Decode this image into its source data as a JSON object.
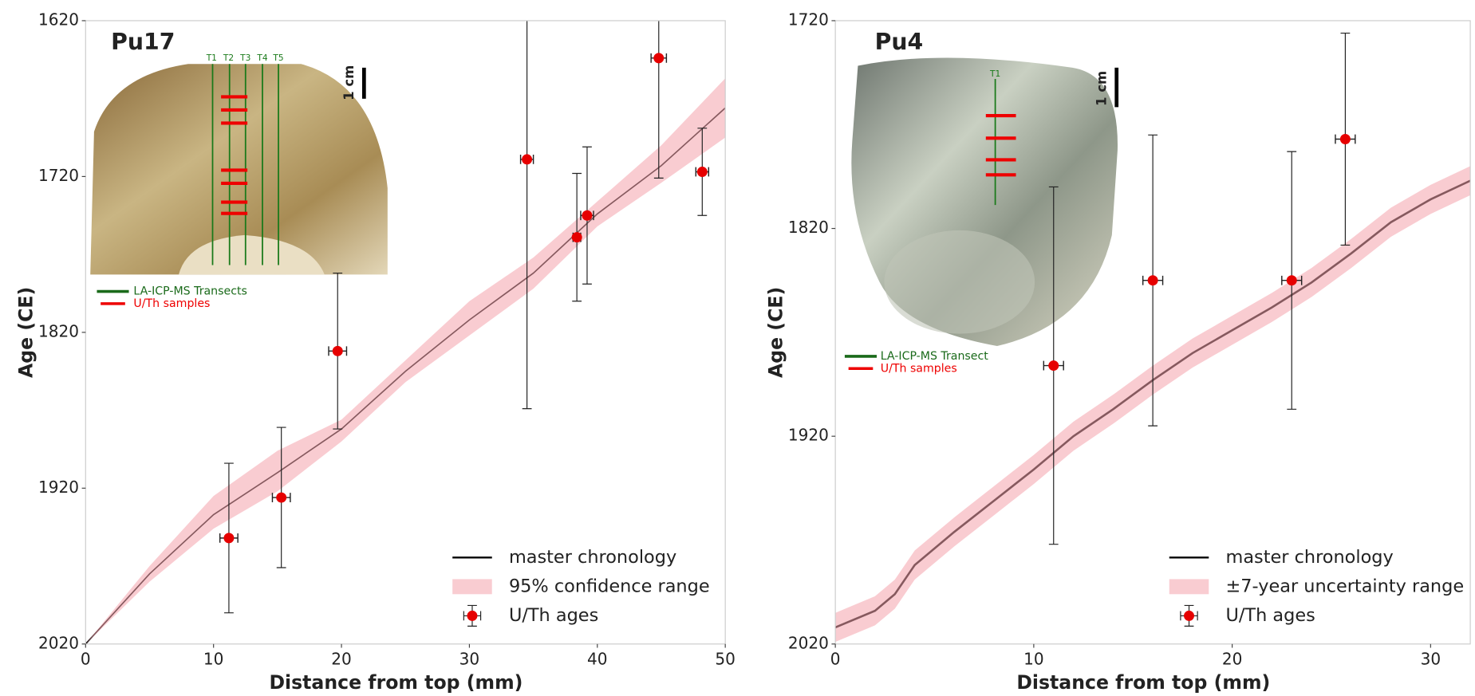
{
  "chart_data": [
    {
      "type": "line",
      "xlabel": "Distance from top (mm)",
      "ylabel": "Age (CE)",
      "xlim": [
        0,
        50
      ],
      "xticks": [
        0,
        10,
        20,
        30,
        40,
        50
      ],
      "ylim": [
        1620,
        2020
      ],
      "yticks": [
        1620,
        1720,
        1820,
        1920,
        2020
      ],
      "y_inverted": true,
      "legend": "lower right",
      "series": [
        {
          "name": "master chronology",
          "color": "#000000",
          "x": [
            0,
            5,
            10,
            15,
            20,
            25,
            30,
            35,
            40,
            45,
            50
          ],
          "values": [
            2020,
            1975,
            1937,
            1910,
            1882,
            1845,
            1812,
            1782,
            1744,
            1713,
            1676
          ]
        },
        {
          "name": "95% confidence range",
          "color": "#f4a3ab",
          "x": [
            0,
            5,
            10,
            15,
            20,
            25,
            30,
            35,
            40,
            45,
            50
          ],
          "low": [
            2020,
            1970,
            1925,
            1896,
            1876,
            1838,
            1800,
            1772,
            1736,
            1700,
            1657
          ],
          "high": [
            2020,
            1980,
            1946,
            1922,
            1890,
            1852,
            1822,
            1792,
            1752,
            1724,
            1695
          ]
        },
        {
          "name": "U/Th ages",
          "color": "#e60000",
          "x": [
            11.2,
            15.3,
            19.7,
            34.5,
            38.4,
            39.2,
            44.8,
            48.2
          ],
          "values": [
            1952,
            1926,
            1832,
            1709,
            1759,
            1745,
            1644,
            1717
          ],
          "yerr": [
            48,
            45,
            50,
            160,
            41,
            44,
            77,
            28
          ],
          "xerr": [
            0.7,
            0.7,
            0.7,
            0.5,
            0.3,
            0.5,
            0.6,
            0.5
          ]
        }
      ],
      "inset": {
        "label": "Pu17",
        "scale": "1 cm",
        "transects": [
          "T1",
          "T2",
          "T3",
          "T4",
          "T5"
        ],
        "legend": [
          "LA-ICP-MS Transects",
          "U/Th samples"
        ]
      }
    },
    {
      "type": "line",
      "xlabel": "Distance from top (mm)",
      "ylabel": "Age (CE)",
      "xlim": [
        0,
        32
      ],
      "xticks": [
        0,
        10,
        20,
        30
      ],
      "ylim": [
        1720,
        2020
      ],
      "yticks": [
        1720,
        1820,
        1920,
        2020
      ],
      "y_inverted": true,
      "legend": "lower right",
      "series": [
        {
          "name": "master chronology",
          "color": "#000000",
          "x": [
            0,
            2,
            3,
            4,
            6,
            8,
            10,
            12,
            14,
            16,
            18,
            20,
            22,
            24,
            26,
            28,
            30,
            32
          ],
          "values": [
            2012,
            2004,
            1996,
            1982,
            1966,
            1951,
            1936,
            1920,
            1907,
            1893,
            1880,
            1869,
            1858,
            1846,
            1832,
            1817,
            1806,
            1797
          ]
        },
        {
          "name": "±7-year uncertainty range",
          "color": "#f4a3ab",
          "x": [
            0,
            2,
            3,
            4,
            6,
            8,
            10,
            12,
            14,
            16,
            18,
            20,
            22,
            24,
            26,
            28,
            30,
            32
          ],
          "low": [
            2005,
            1997,
            1989,
            1975,
            1959,
            1944,
            1929,
            1913,
            1900,
            1886,
            1873,
            1862,
            1851,
            1839,
            1825,
            1810,
            1799,
            1790
          ],
          "high": [
            2019,
            2011,
            2003,
            1989,
            1973,
            1958,
            1943,
            1927,
            1914,
            1900,
            1887,
            1876,
            1865,
            1853,
            1839,
            1824,
            1813,
            1804
          ]
        },
        {
          "name": "U/Th ages",
          "color": "#e60000",
          "x": [
            11.0,
            16.0,
            23.0,
            25.7
          ],
          "values": [
            1886,
            1845,
            1845,
            1777
          ],
          "yerr": [
            86,
            70,
            62,
            51
          ],
          "xerr": [
            0.5,
            0.5,
            0.5,
            0.5
          ]
        }
      ],
      "inset": {
        "label": "Pu4",
        "scale": "1 cm",
        "transects": [
          "T1"
        ],
        "legend": [
          "LA-ICP-MS Transect",
          "U/Th samples"
        ]
      }
    }
  ]
}
